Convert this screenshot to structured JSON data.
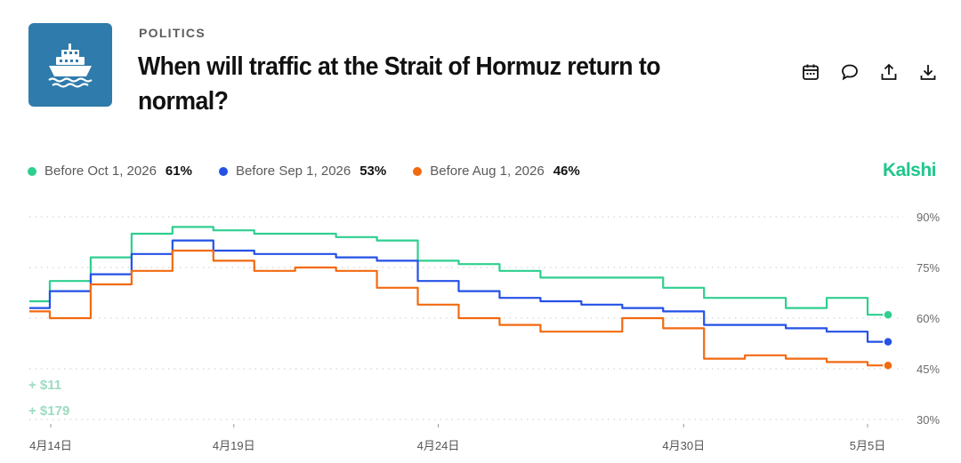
{
  "header": {
    "category": "POLITICS",
    "title": "When will traffic at the Strait of Hormuz return to normal?",
    "logo_icon": "ship-icon",
    "logo_color": "#2f7bab"
  },
  "toolbar": {
    "icons": [
      "calendar-icon",
      "comment-icon",
      "share-icon",
      "download-icon"
    ]
  },
  "brand": {
    "name": "Kalshi",
    "color": "#1fc78c"
  },
  "legend": [
    {
      "label": "Before Oct 1, 2026",
      "value": "61%",
      "color": "#2ecf8f"
    },
    {
      "label": "Before Sep 1, 2026",
      "value": "53%",
      "color": "#2451e6"
    },
    {
      "label": "Before Aug 1, 2026",
      "value": "46%",
      "color": "#f26a10"
    }
  ],
  "notes": [
    "+ $11",
    "+ $179"
  ],
  "chart_data": {
    "type": "line",
    "x_tick_labels": [
      "4月14日",
      "4月19日",
      "4月24日",
      "4月30日",
      "5月5日"
    ],
    "x": [
      "4月14日",
      "4月15日",
      "4月16日",
      "4月17日",
      "4月18日",
      "4月19日",
      "4月20日",
      "4月21日",
      "4月22日",
      "4月23日",
      "4月24日",
      "4月25日",
      "4月26日",
      "4月27日",
      "4月28日",
      "4月29日",
      "4月30日",
      "5月1日",
      "5月2日",
      "5月3日",
      "5月4日",
      "5月5日"
    ],
    "y_tick_labels": [
      "90%",
      "75%",
      "60%",
      "45%",
      "30%"
    ],
    "ylim": [
      30,
      90
    ],
    "grid": true,
    "series": [
      {
        "name": "Before Oct 1, 2026",
        "color": "#2ecf8f",
        "values": [
          65,
          71,
          78,
          85,
          87,
          86,
          85,
          85,
          84,
          83,
          77,
          76,
          74,
          72,
          72,
          72,
          69,
          66,
          66,
          63,
          66,
          61
        ]
      },
      {
        "name": "Before Sep 1, 2026",
        "color": "#2451e6",
        "values": [
          63,
          68,
          73,
          79,
          83,
          80,
          79,
          79,
          78,
          77,
          71,
          68,
          66,
          65,
          64,
          63,
          62,
          58,
          58,
          57,
          56,
          53
        ]
      },
      {
        "name": "Before Aug 1, 2026",
        "color": "#f26a10",
        "values": [
          62,
          60,
          70,
          74,
          80,
          77,
          74,
          75,
          74,
          69,
          64,
          60,
          58,
          56,
          56,
          60,
          57,
          48,
          49,
          48,
          47,
          46
        ]
      }
    ]
  }
}
